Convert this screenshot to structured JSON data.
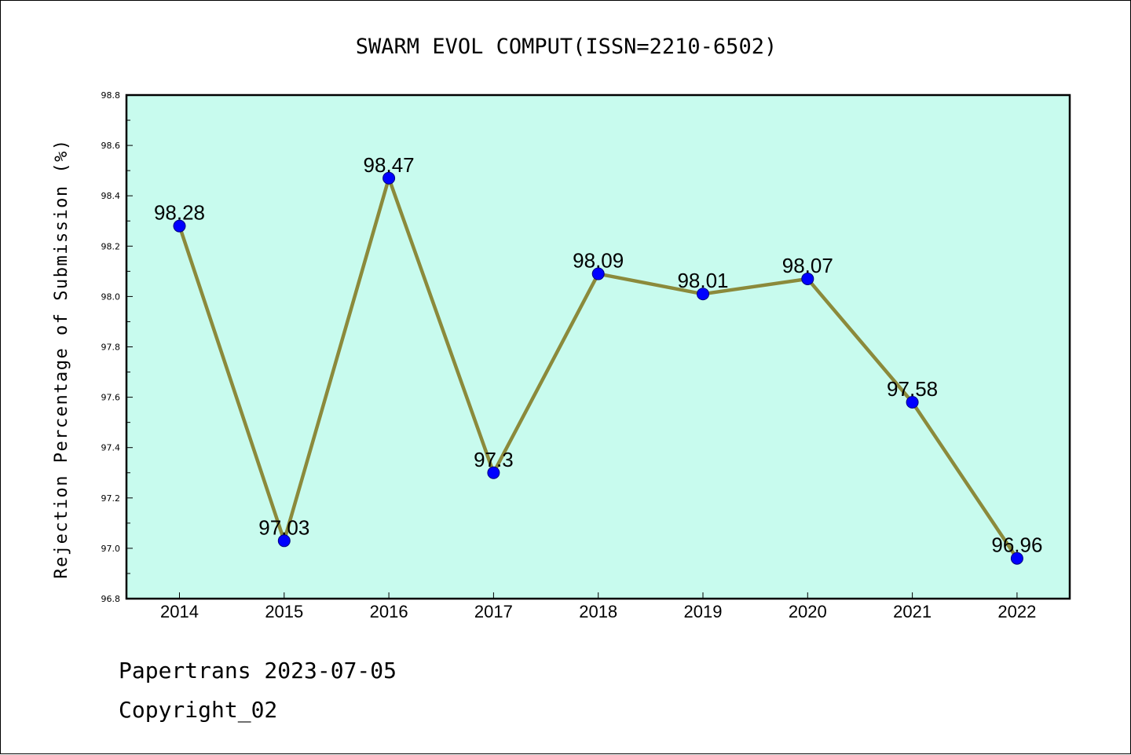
{
  "chart_data": {
    "type": "line",
    "title": "SWARM EVOL COMPUT(ISSN=2210-6502)",
    "xlabel": "",
    "ylabel": "Rejection Percentage of Submission (%)",
    "categories": [
      "2014",
      "2015",
      "2016",
      "2017",
      "2018",
      "2019",
      "2020",
      "2021",
      "2022"
    ],
    "series": [
      {
        "values": [
          98.28,
          97.03,
          98.47,
          97.3,
          98.09,
          98.01,
          98.07,
          97.58,
          96.96
        ],
        "data_labels": [
          "98.28",
          "97.03",
          "98.47",
          "97.3",
          "98.09",
          "98.01",
          "98.07",
          "97.58",
          "96.96"
        ]
      }
    ],
    "ylim": [
      96.8,
      98.8
    ],
    "yticks": [
      "96.8",
      "97.0",
      "97.2",
      "97.4",
      "97.6",
      "97.8",
      "98.0",
      "98.2",
      "98.4",
      "98.6",
      "98.8"
    ],
    "grid": false,
    "legend": "none"
  },
  "footer": {
    "author_date": "Papertrans 2023-07-05",
    "copyright": "Copyright_02"
  },
  "colors": {
    "plot_background": "#c8fbee",
    "line": "#8b8a3b",
    "marker": "#0000ff",
    "marker_edge": "#000080",
    "axis": "#000000",
    "text": "#000000"
  }
}
